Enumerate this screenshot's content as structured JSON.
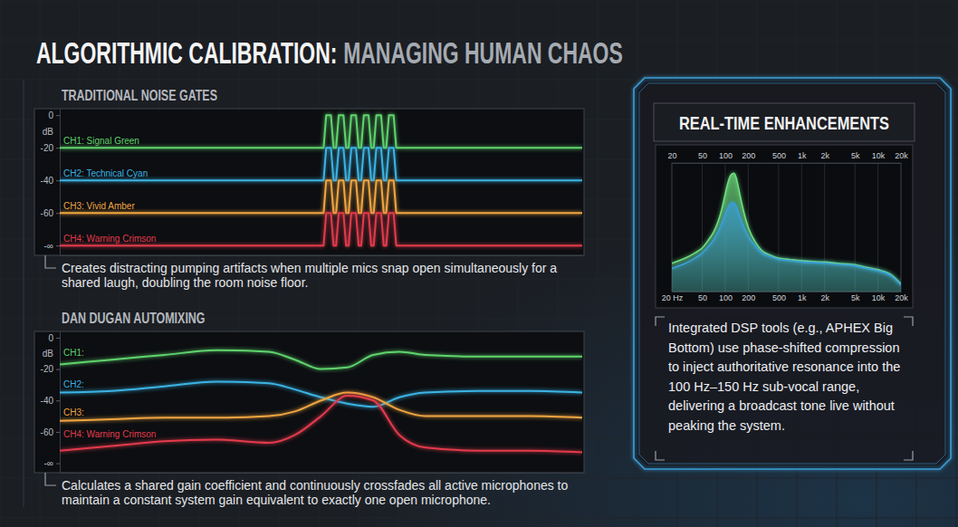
{
  "header": {
    "title": "ALGORITHMIC CALIBRATION:",
    "subtitle": "MANAGING HUMAN CHAOS"
  },
  "chart_data": [
    {
      "type": "line",
      "title": "TRADITIONAL NOISE GATES",
      "ylabel": "dB",
      "caption": "Creates distracting pumping artifacts when multiple mics snap open simultaneously for a shared laugh, doubling the room noise floor.",
      "x": [
        0,
        50.5,
        51,
        51.9,
        52.4,
        52.9,
        53.4,
        54.3,
        54.8,
        55.3,
        55.8,
        56.7,
        57.2,
        57.7,
        58.2,
        59.1,
        59.6,
        60.1,
        60.6,
        61.5,
        62,
        62.5,
        63,
        63.9,
        64.4,
        100
      ],
      "xlim": [
        0,
        100
      ],
      "ylim": [
        -86,
        4
      ],
      "yticks": [
        0,
        -20,
        -40,
        -60,
        {
          "value": -80,
          "label": "-∞"
        }
      ],
      "tick_labels": "y",
      "grid": false,
      "line_style": "solid",
      "series": [
        {
          "name": "CH1: Signal Green",
          "color": "#5fd36c",
          "values": [
            -20,
            -20,
            0,
            0,
            -20,
            -20,
            0,
            0,
            -20,
            -20,
            0,
            0,
            -20,
            -20,
            0,
            0,
            -20,
            -20,
            0,
            0,
            -20,
            -20,
            0,
            0,
            -20,
            -20
          ]
        },
        {
          "name": "CH2: Technical Cyan",
          "color": "#3bb3e3",
          "values": [
            -40,
            -40,
            -20,
            -20,
            -40,
            -40,
            -20,
            -20,
            -40,
            -40,
            -20,
            -20,
            -40,
            -40,
            -20,
            -20,
            -40,
            -40,
            -20,
            -20,
            -40,
            -40,
            -20,
            -20,
            -40,
            -40
          ]
        },
        {
          "name": "CH3: Vivid Amber",
          "color": "#f0a541",
          "values": [
            -60,
            -60,
            -40,
            -40,
            -60,
            -60,
            -40,
            -40,
            -60,
            -60,
            -40,
            -40,
            -60,
            -60,
            -40,
            -40,
            -60,
            -60,
            -40,
            -40,
            -60,
            -60,
            -40,
            -40,
            -60,
            -60
          ]
        },
        {
          "name": "CH4: Warning Crimson",
          "color": "#e23a4c",
          "values": [
            -80,
            -80,
            -60,
            -60,
            -80,
            -80,
            -60,
            -60,
            -80,
            -80,
            -60,
            -60,
            -80,
            -80,
            -60,
            -60,
            -80,
            -80,
            -60,
            -60,
            -80,
            -80,
            -60,
            -60,
            -80,
            -80
          ]
        }
      ]
    },
    {
      "type": "line",
      "title": "DAN DUGAN AUTOMIXING",
      "ylabel": "dB",
      "caption": "Calculates a shared gain coefficient and continuously crossfades all active microphones to maintain a constant system gain equivalent to exactly one open microphone.",
      "x": [
        0,
        10,
        20,
        30,
        40,
        45,
        50,
        55,
        60,
        65,
        70,
        80,
        90,
        100
      ],
      "xlim": [
        0,
        100
      ],
      "ylim": [
        -86,
        4
      ],
      "yticks": [
        0,
        -20,
        -40,
        -60,
        {
          "value": -80,
          "label": "-∞"
        }
      ],
      "tick_labels": "y",
      "grid": false,
      "line_style": "smooth",
      "series": [
        {
          "name": "CH1:",
          "color": "#5fd36c",
          "values": [
            -17,
            -14,
            -11,
            -8,
            -9,
            -14,
            -20,
            -19,
            -11,
            -9,
            -11,
            -12,
            -12,
            -12
          ]
        },
        {
          "name": "CH2:",
          "color": "#3bb3e3",
          "values": [
            -35,
            -34,
            -31,
            -28,
            -29,
            -33,
            -38,
            -42,
            -44,
            -38,
            -35,
            -34,
            -34,
            -35
          ]
        },
        {
          "name": "CH3:",
          "color": "#f0a541",
          "values": [
            -53,
            -52,
            -51,
            -51,
            -50,
            -47,
            -40,
            -35,
            -38,
            -46,
            -50,
            -50,
            -50,
            -51
          ]
        },
        {
          "name": "CH4: Warning Crimson",
          "color": "#e23a4c",
          "values": [
            -72,
            -69,
            -66,
            -65,
            -67,
            -62,
            -50,
            -37,
            -40,
            -62,
            -70,
            -72,
            -72,
            -73
          ]
        }
      ]
    },
    {
      "type": "area",
      "title": "REAL-TIME ENHANCEMENTS",
      "caption": "Integrated DSP tools (e.g., APHEX Big Bottom) use phase-shifted compression to inject authoritative resonance into the 100 Hz–150 Hz sub-vocal range, delivering a broadcast tone live without peaking the system.",
      "log": "x",
      "x": [
        20,
        30,
        40,
        50,
        60,
        70,
        80,
        90,
        100,
        110,
        120,
        130,
        140,
        150,
        170,
        200,
        250,
        300,
        400,
        500,
        700,
        1000,
        2000,
        3000,
        5000,
        7000,
        10000,
        15000,
        20000
      ],
      "xlim": [
        20,
        20000
      ],
      "ylim": [
        0,
        100
      ],
      "xticks": [
        {
          "value": 20,
          "label": "20 Hz"
        },
        50,
        100,
        200,
        500,
        {
          "value": 1000,
          "label": "1k"
        },
        {
          "value": 2000,
          "label": "2k"
        },
        {
          "value": 5000,
          "label": "5k"
        },
        {
          "value": 10000,
          "label": "10k"
        },
        {
          "value": 20000,
          "label": "20k"
        }
      ],
      "x2ticks": [
        20,
        50,
        100,
        200,
        500,
        {
          "value": 1000,
          "label": "1k"
        },
        {
          "value": 2000,
          "label": "2k"
        },
        {
          "value": 5000,
          "label": "5k"
        },
        {
          "value": 10000,
          "label": "10k"
        },
        {
          "value": 20000,
          "label": "20k"
        }
      ],
      "tick_labels": "x",
      "grid": true,
      "line_style": "smooth",
      "series": [
        {
          "color": "#6fe07f",
          "values": [
            22,
            26,
            30,
            34,
            40,
            46,
            54,
            64,
            76,
            86,
            91,
            92,
            88,
            80,
            65,
            50,
            38,
            32,
            28,
            26,
            25,
            24,
            23,
            22,
            21,
            19,
            17,
            13,
            6
          ]
        },
        {
          "color": "#3a9fd8",
          "values": [
            18,
            22,
            26,
            30,
            35,
            40,
            46,
            53,
            60,
            66,
            69,
            69,
            66,
            61,
            52,
            43,
            35,
            30,
            27,
            25,
            24,
            23,
            22,
            21,
            20,
            18,
            16,
            12,
            5
          ]
        }
      ]
    }
  ]
}
